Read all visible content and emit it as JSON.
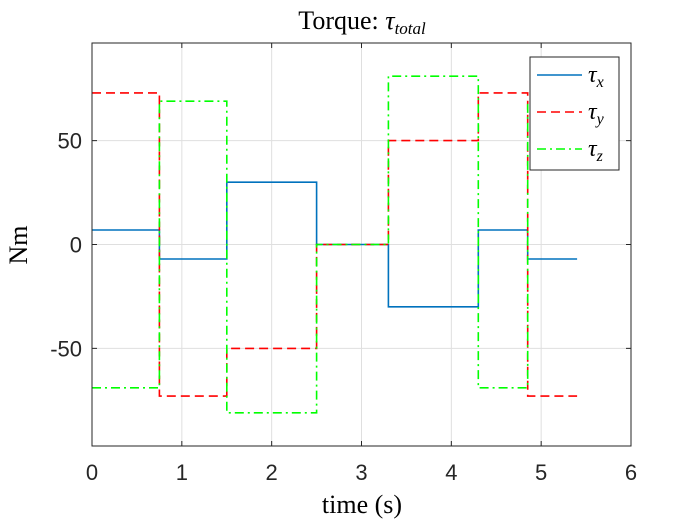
{
  "chart_data": {
    "type": "line",
    "title": "Torque: ",
    "title_symbol": "τ",
    "title_subscript": "total",
    "xlabel": "time (s)",
    "ylabel": "Nm",
    "xlim": [
      0,
      6
    ],
    "ylim": [
      -97,
      97
    ],
    "xticks": [
      0,
      1,
      2,
      3,
      4,
      5,
      6
    ],
    "yticks": [
      -50,
      0,
      50
    ],
    "ytick_labels": [
      "-50",
      "0",
      "50"
    ],
    "grid": true,
    "legend_position": "top-right",
    "series": [
      {
        "name": "x",
        "legend_symbol": "τ",
        "color": "#0072bd",
        "style": "solid",
        "points": [
          [
            0,
            7
          ],
          [
            0.75,
            7
          ],
          [
            0.75,
            -7
          ],
          [
            1.5,
            -7
          ],
          [
            1.5,
            30
          ],
          [
            2.5,
            30
          ],
          [
            2.5,
            0
          ],
          [
            3.3,
            0
          ],
          [
            3.3,
            -30
          ],
          [
            4.3,
            -30
          ],
          [
            4.3,
            7
          ],
          [
            4.85,
            7
          ],
          [
            4.85,
            -7
          ],
          [
            5.4,
            -7
          ]
        ]
      },
      {
        "name": "y",
        "legend_symbol": "τ",
        "color": "#ff0000",
        "style": "dashed",
        "points": [
          [
            0,
            73
          ],
          [
            0.75,
            73
          ],
          [
            0.75,
            -73
          ],
          [
            1.5,
            -73
          ],
          [
            1.5,
            -50
          ],
          [
            2.5,
            -50
          ],
          [
            2.5,
            0
          ],
          [
            3.3,
            0
          ],
          [
            3.3,
            50
          ],
          [
            4.3,
            50
          ],
          [
            4.3,
            73
          ],
          [
            4.85,
            73
          ],
          [
            4.85,
            -73
          ],
          [
            5.4,
            -73
          ]
        ]
      },
      {
        "name": "z",
        "legend_symbol": "τ",
        "color": "#00ff00",
        "style": "dashdot",
        "points": [
          [
            0,
            -69
          ],
          [
            0.75,
            -69
          ],
          [
            0.75,
            69
          ],
          [
            1.5,
            69
          ],
          [
            1.5,
            -81
          ],
          [
            2.5,
            -81
          ],
          [
            2.5,
            0
          ],
          [
            3.3,
            0
          ],
          [
            3.3,
            81
          ],
          [
            4.3,
            81
          ],
          [
            4.3,
            -69
          ],
          [
            4.85,
            -69
          ],
          [
            4.85,
            69
          ]
        ]
      }
    ]
  }
}
